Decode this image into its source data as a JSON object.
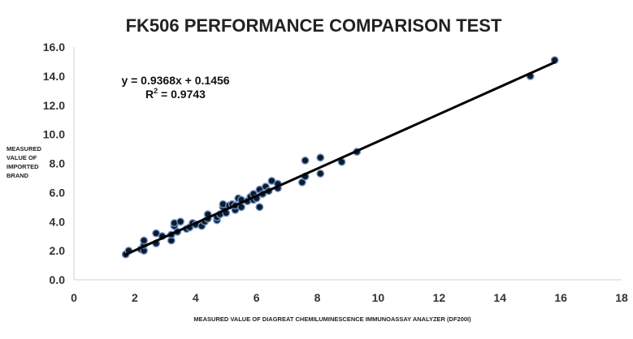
{
  "chart_data": {
    "type": "scatter",
    "title": "FK506 PERFORMANCE COMPARISON TEST",
    "xlabel": "MEASURED VALUE OF DIAGREAT CHEMILUMINESCENCE IMMUNOASSAY ANALYZER (DF200I)",
    "ylabel_lines": [
      "MEASURED",
      "VALUE OF",
      "IMPORTED",
      "BRAND"
    ],
    "xlim": [
      0,
      18
    ],
    "ylim": [
      0,
      16
    ],
    "x_ticks": [
      "0",
      "2",
      "4",
      "6",
      "8",
      "10",
      "12",
      "14",
      "16",
      "18"
    ],
    "y_ticks": [
      "0.0",
      "2.0",
      "4.0",
      "6.0",
      "8.0",
      "10.0",
      "12.0",
      "14.0",
      "16.0"
    ],
    "grid": false,
    "legend": "none",
    "trendline": {
      "slope": 0.9368,
      "intercept": 0.1456,
      "x_range": [
        1.7,
        15.8
      ]
    },
    "annotations": {
      "equation": "y = 0.9368x + 0.1456",
      "r_squared_prefix": "R",
      "r_squared_sup": "2",
      "r_squared_value": " = 0.9743"
    },
    "colors": {
      "marker_fill": "#0d1b2a",
      "marker_stroke": "#6b8fc4",
      "line": "#000000",
      "axis": "#d0d0d0"
    },
    "points": [
      [
        1.7,
        1.75
      ],
      [
        1.8,
        2.0
      ],
      [
        2.2,
        2.1
      ],
      [
        2.3,
        2.0
      ],
      [
        2.3,
        2.4
      ],
      [
        2.3,
        2.7
      ],
      [
        2.7,
        2.5
      ],
      [
        2.7,
        3.2
      ],
      [
        2.9,
        3.0
      ],
      [
        3.2,
        2.7
      ],
      [
        3.2,
        3.1
      ],
      [
        3.3,
        3.7
      ],
      [
        3.3,
        3.9
      ],
      [
        3.4,
        3.3
      ],
      [
        3.5,
        4.0
      ],
      [
        3.7,
        3.5
      ],
      [
        3.8,
        3.6
      ],
      [
        3.9,
        3.9
      ],
      [
        4.0,
        3.8
      ],
      [
        4.2,
        3.7
      ],
      [
        4.3,
        4.0
      ],
      [
        4.4,
        4.2
      ],
      [
        4.4,
        4.5
      ],
      [
        4.7,
        4.1
      ],
      [
        4.7,
        4.3
      ],
      [
        4.8,
        4.5
      ],
      [
        4.9,
        5.0
      ],
      [
        4.9,
        5.2
      ],
      [
        5.0,
        4.6
      ],
      [
        5.1,
        5.1
      ],
      [
        5.2,
        5.2
      ],
      [
        5.3,
        4.8
      ],
      [
        5.3,
        5.1
      ],
      [
        5.4,
        5.6
      ],
      [
        5.5,
        5.0
      ],
      [
        5.5,
        5.5
      ],
      [
        5.7,
        5.4
      ],
      [
        5.8,
        5.7
      ],
      [
        5.9,
        5.5
      ],
      [
        5.9,
        5.9
      ],
      [
        6.0,
        5.6
      ],
      [
        6.1,
        6.2
      ],
      [
        6.1,
        5.0
      ],
      [
        6.2,
        5.9
      ],
      [
        6.3,
        6.4
      ],
      [
        6.4,
        6.1
      ],
      [
        6.5,
        6.8
      ],
      [
        6.7,
        6.3
      ],
      [
        6.7,
        6.6
      ],
      [
        7.5,
        6.7
      ],
      [
        7.6,
        8.2
      ],
      [
        7.6,
        7.1
      ],
      [
        8.1,
        7.3
      ],
      [
        8.1,
        8.4
      ],
      [
        8.8,
        8.1
      ],
      [
        9.3,
        8.8
      ],
      [
        15.0,
        14.0
      ],
      [
        15.8,
        15.1
      ]
    ]
  }
}
